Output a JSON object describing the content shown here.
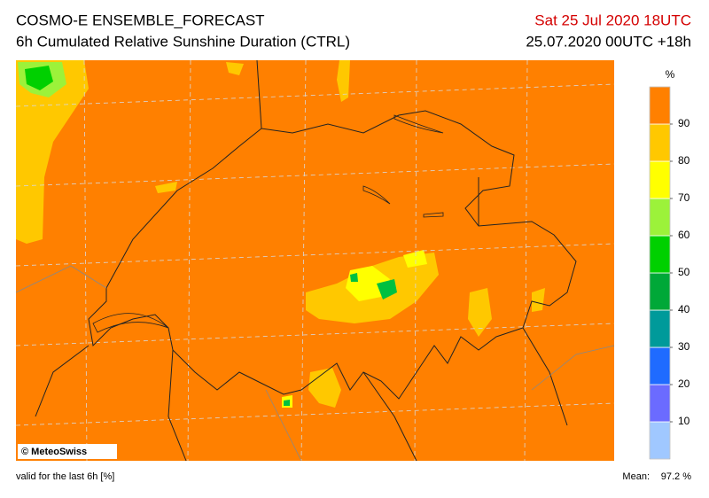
{
  "header": {
    "title": "COSMO-E ENSEMBLE_FORECAST",
    "subtitle": "6h Cumulated Relative Sunshine Duration (CTRL)",
    "valid_time": "Sat 25 Jul 2020 18UTC",
    "run": "25.07.2020 00UTC +18h"
  },
  "map": {
    "credit": "© MeteoSwiss"
  },
  "colorbar": {
    "unit": "%",
    "range": [
      0,
      100
    ],
    "ticks": [
      10,
      20,
      30,
      40,
      50,
      60,
      70,
      80,
      90
    ],
    "colors": [
      "#a0c8ff",
      "#6b6bff",
      "#1f6bff",
      "#009a9a",
      "#00a838",
      "#00d000",
      "#9cf23a",
      "#ffff00",
      "#ffc800",
      "#ff8000"
    ]
  },
  "footer": {
    "note": "valid for the last 6h [%]",
    "mean_label": "Mean:",
    "mean_value": "97.2 %"
  }
}
